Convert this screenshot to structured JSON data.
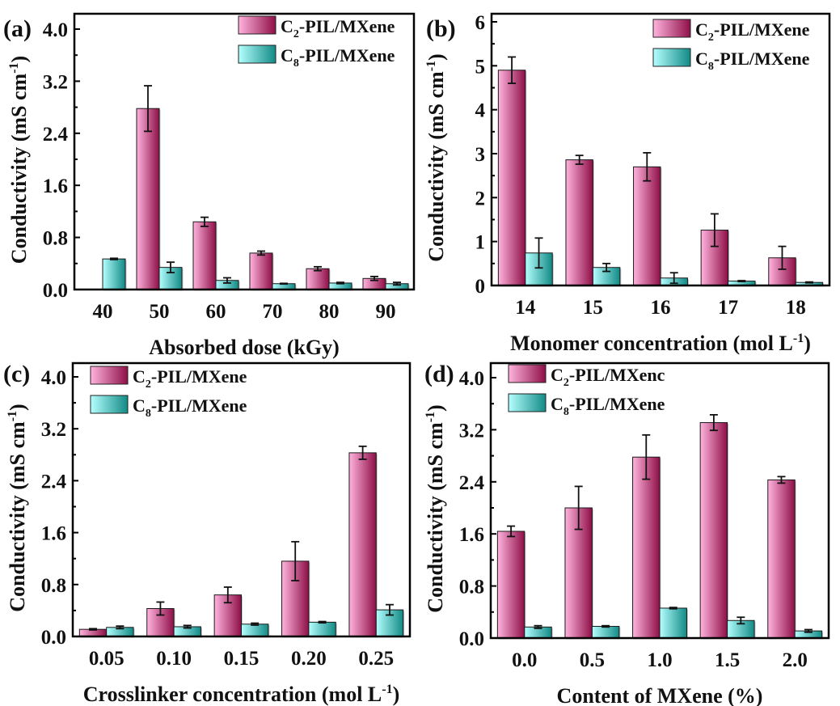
{
  "figure": {
    "colors": {
      "c2_light": "#ffb3de",
      "c2_dark": "#8e0f47",
      "c8_light": "#b4ffff",
      "c8_dark": "#128a85",
      "axis": "#000000",
      "error_bar": "#111111"
    }
  },
  "chart_data": [
    {
      "panel_label": "(a)",
      "type": "bar",
      "xlabel": "Absorbed dose (kGy)",
      "ylabel": "Conductivity (mS cm",
      "ylabel_sup": "-1",
      "ylabel_suffix": ")",
      "categories": [
        "40",
        "50",
        "60",
        "70",
        "80",
        "90"
      ],
      "ylim": [
        0,
        4.0
      ],
      "yticks": [
        0.0,
        0.8,
        1.6,
        2.4,
        3.2,
        4.0
      ],
      "ytick_labels": [
        "0.0",
        "0.8",
        "1.6",
        "2.4",
        "3.2",
        "4.0"
      ],
      "legend_position": "top-right",
      "series": [
        {
          "name": "C2-PIL/MXene",
          "legend_main": "C",
          "legend_sub": "2",
          "legend_rest": "-PIL/MXene",
          "values": [
            null,
            2.78,
            1.04,
            0.56,
            0.32,
            0.17
          ],
          "errors": [
            null,
            0.35,
            0.07,
            0.03,
            0.03,
            0.03
          ]
        },
        {
          "name": "C8-PIL/MXene",
          "legend_main": "C",
          "legend_sub": "8",
          "legend_rest": "-PIL/MXene",
          "values": [
            0.47,
            0.34,
            0.14,
            0.09,
            0.1,
            0.09
          ],
          "errors": [
            0.01,
            0.08,
            0.04,
            0.005,
            0.01,
            0.02
          ]
        }
      ]
    },
    {
      "panel_label": "(b)",
      "type": "bar",
      "xlabel": "Monomer concentration (mol L",
      "xlabel_sup": "-1",
      "xlabel_suffix": ")",
      "ylabel": "Conductivity (mS cm",
      "ylabel_sup": "-1",
      "ylabel_suffix": ")",
      "categories": [
        "14",
        "15",
        "16",
        "17",
        "18"
      ],
      "ylim": [
        0,
        6
      ],
      "yticks": [
        0,
        1,
        2,
        3,
        4,
        5,
        6
      ],
      "ytick_labels": [
        "0",
        "1",
        "2",
        "3",
        "4",
        "5",
        "6"
      ],
      "legend_position": "top-right",
      "series": [
        {
          "name": "C2-PIL/MXene",
          "legend_main": "C",
          "legend_sub": "2",
          "legend_rest": "-PIL/MXene",
          "values": [
            4.9,
            2.86,
            2.7,
            1.26,
            0.63
          ],
          "errors": [
            0.3,
            0.1,
            0.32,
            0.37,
            0.26
          ]
        },
        {
          "name": "C8-PIL/MXene",
          "legend_main": "C",
          "legend_sub": "8",
          "legend_rest": "-PIL/MXene",
          "values": [
            0.74,
            0.41,
            0.17,
            0.1,
            0.07
          ],
          "errors": [
            0.34,
            0.09,
            0.12,
            0.01,
            0.01
          ]
        }
      ]
    },
    {
      "panel_label": "(c)",
      "type": "bar",
      "xlabel": "Crosslinker concentration (mol L",
      "xlabel_sup": "-1",
      "xlabel_suffix": ")",
      "ylabel": "Conductivity (mS cm",
      "ylabel_sup": "-1",
      "ylabel_suffix": ")",
      "categories": [
        "0.05",
        "0.10",
        "0.15",
        "0.20",
        "0.25"
      ],
      "ylim": [
        0,
        4.0
      ],
      "yticks": [
        0.0,
        0.8,
        1.6,
        2.4,
        3.2,
        4.0
      ],
      "ytick_labels": [
        "0.0",
        "0.8",
        "1.6",
        "2.4",
        "3.2",
        "4.0"
      ],
      "legend_position": "top-left",
      "series": [
        {
          "name": "C2-PIL/MXene",
          "legend_main": "C",
          "legend_sub": "2",
          "legend_rest": "-PIL/MXene",
          "values": [
            0.11,
            0.43,
            0.64,
            1.16,
            2.83
          ],
          "errors": [
            0.01,
            0.1,
            0.12,
            0.3,
            0.1
          ]
        },
        {
          "name": "C8-PIL/MXene",
          "legend_main": "C",
          "legend_sub": "8",
          "legend_rest": "-PIL/MXene",
          "values": [
            0.14,
            0.15,
            0.19,
            0.22,
            0.41
          ],
          "errors": [
            0.02,
            0.02,
            0.015,
            0.01,
            0.08
          ]
        }
      ]
    },
    {
      "panel_label": "(d)",
      "type": "bar",
      "xlabel": "Content of MXene (%)",
      "ylabel": "Conductivity (mS cm",
      "ylabel_sup": "-1",
      "ylabel_suffix": ")",
      "categories": [
        "0.0",
        "0.5",
        "1.0",
        "1.5",
        "2.0"
      ],
      "ylim": [
        0,
        4.0
      ],
      "yticks": [
        0.0,
        0.8,
        1.6,
        2.4,
        3.2,
        4.0
      ],
      "ytick_labels": [
        "0.0",
        "0.8",
        "1.6",
        "2.4",
        "3.2",
        "4.0"
      ],
      "legend_position": "top-left",
      "series": [
        {
          "name": "C2-PIL/MXenc",
          "legend_main": "C",
          "legend_sub": "2",
          "legend_rest": "-PIL/MXenc",
          "values": [
            1.64,
            2.0,
            2.78,
            3.31,
            2.43
          ],
          "errors": [
            0.08,
            0.33,
            0.34,
            0.12,
            0.05
          ]
        },
        {
          "name": "C8-PIL/MXene",
          "legend_main": "C",
          "legend_sub": "8",
          "legend_rest": "-PIL/MXene",
          "values": [
            0.17,
            0.18,
            0.46,
            0.27,
            0.11
          ],
          "errors": [
            0.02,
            0.01,
            0.01,
            0.05,
            0.02
          ]
        }
      ]
    }
  ]
}
